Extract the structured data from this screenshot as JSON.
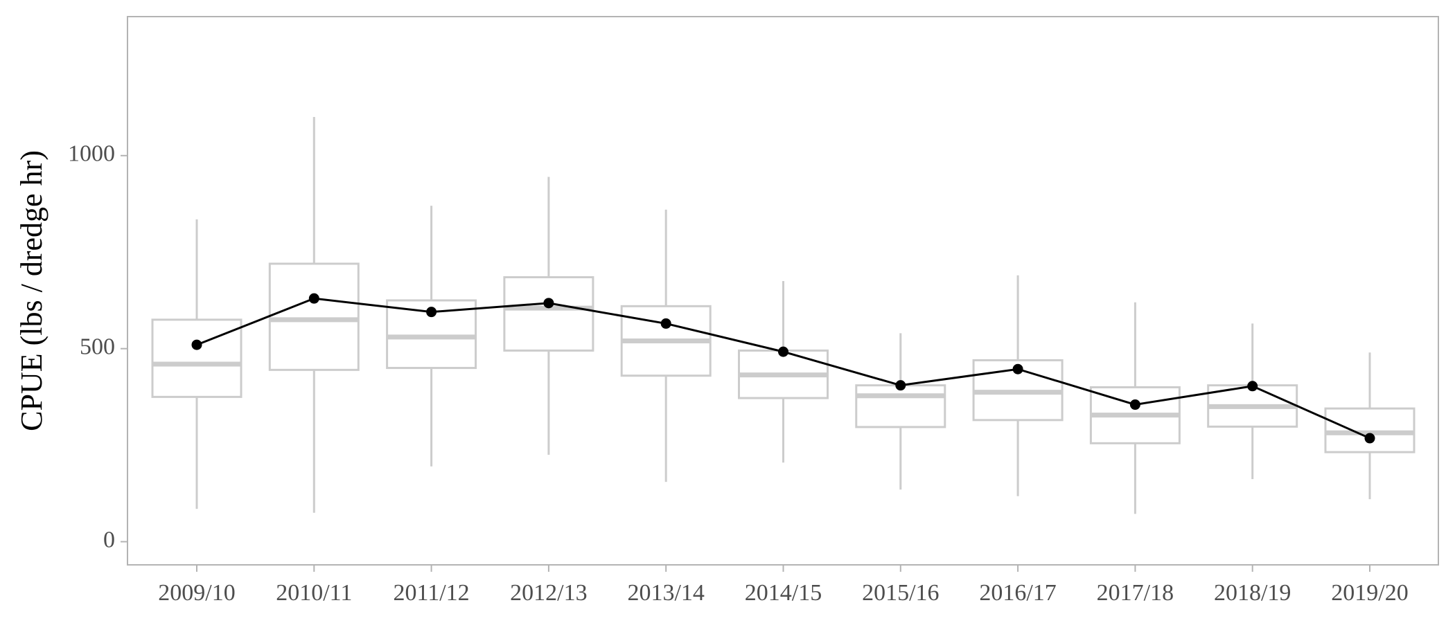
{
  "chart_data": {
    "type": "box",
    "title": "",
    "xlabel": "",
    "ylabel": "CPUE (lbs / dredge hr)",
    "ylim": [
      -60,
      1360
    ],
    "yticks": [
      0,
      500,
      1000
    ],
    "grid": false,
    "categories": [
      "2009/10",
      "2010/11",
      "2011/12",
      "2012/13",
      "2013/14",
      "2014/15",
      "2015/16",
      "2016/17",
      "2017/18",
      "2018/19",
      "2019/20"
    ],
    "boxes": [
      {
        "min": 85,
        "q1": 375,
        "median": 460,
        "q3": 575,
        "max": 835
      },
      {
        "min": 75,
        "q1": 445,
        "median": 575,
        "q3": 720,
        "max": 1100
      },
      {
        "min": 195,
        "q1": 450,
        "median": 530,
        "q3": 625,
        "max": 870
      },
      {
        "min": 225,
        "q1": 495,
        "median": 605,
        "q3": 685,
        "max": 945
      },
      {
        "min": 155,
        "q1": 430,
        "median": 520,
        "q3": 610,
        "max": 860
      },
      {
        "min": 205,
        "q1": 372,
        "median": 432,
        "q3": 495,
        "max": 675
      },
      {
        "min": 135,
        "q1": 297,
        "median": 378,
        "q3": 405,
        "max": 540
      },
      {
        "min": 118,
        "q1": 315,
        "median": 387,
        "q3": 470,
        "max": 690
      },
      {
        "min": 72,
        "q1": 255,
        "median": 328,
        "q3": 400,
        "max": 620
      },
      {
        "min": 162,
        "q1": 298,
        "median": 350,
        "q3": 405,
        "max": 565
      },
      {
        "min": 110,
        "q1": 232,
        "median": 282,
        "q3": 345,
        "max": 490
      }
    ],
    "series": [
      {
        "values": [
          510,
          630,
          595,
          618,
          565,
          492,
          405,
          447,
          355,
          403,
          268
        ],
        "color": "#000000"
      }
    ],
    "box_color": "#cccccc",
    "frame_color": "#b3b3b3"
  }
}
